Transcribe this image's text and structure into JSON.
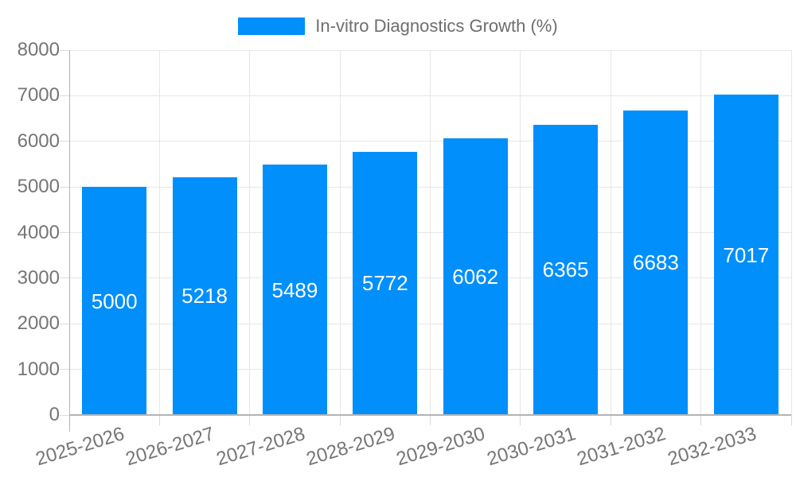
{
  "legend": {
    "label": "In-vitro Diagnostics Growth (%)"
  },
  "colors": {
    "bar": "#008FFB",
    "grid": "#e7e7e7",
    "axis_line": "#b3b3b3",
    "tick": "#d9d9d9",
    "axis_text": "#757575",
    "legend_text": "#6e6e6e",
    "bar_label_text": "#ffffff",
    "background": "#ffffff"
  },
  "chart_data": {
    "type": "bar",
    "title": "",
    "series": [
      {
        "name": "In-vitro Diagnostics Growth (%)",
        "values": [
          5000,
          5218,
          5489,
          5772,
          6062,
          6365,
          6683,
          7017
        ]
      }
    ],
    "categories": [
      "2025-2026",
      "2026-2027",
      "2027-2028",
      "2028-2029",
      "2029-2030",
      "2030-2031",
      "2031-2032",
      "2032-2033"
    ],
    "bar_value_labels": [
      "5000",
      "5218",
      "5489",
      "5772",
      "6062",
      "6365",
      "6683",
      "7017"
    ],
    "xlabel": "",
    "ylabel": "",
    "ylim": [
      0,
      8000
    ],
    "y_ticks": [
      0,
      1000,
      2000,
      3000,
      4000,
      5000,
      6000,
      7000,
      8000
    ],
    "y_tick_labels": [
      "0",
      "1000",
      "2000",
      "3000",
      "4000",
      "5000",
      "6000",
      "7000",
      "8000"
    ],
    "grid": true,
    "legend_position": "top",
    "data_labels": "inside-center",
    "x_label_rotation_deg": -17
  }
}
